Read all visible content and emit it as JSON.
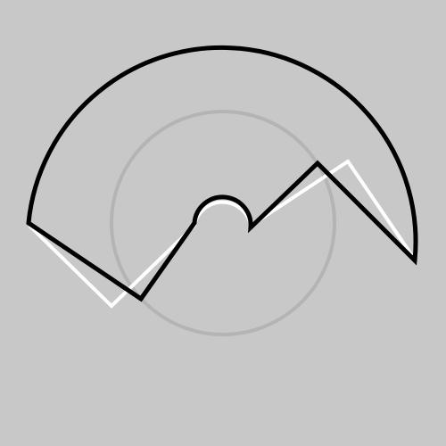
{
  "colors": {
    "background": "#c8c8c8",
    "reference_circle": "#b4b4b4",
    "white_path": "#ffffff",
    "black_path": "#000000"
  }
}
